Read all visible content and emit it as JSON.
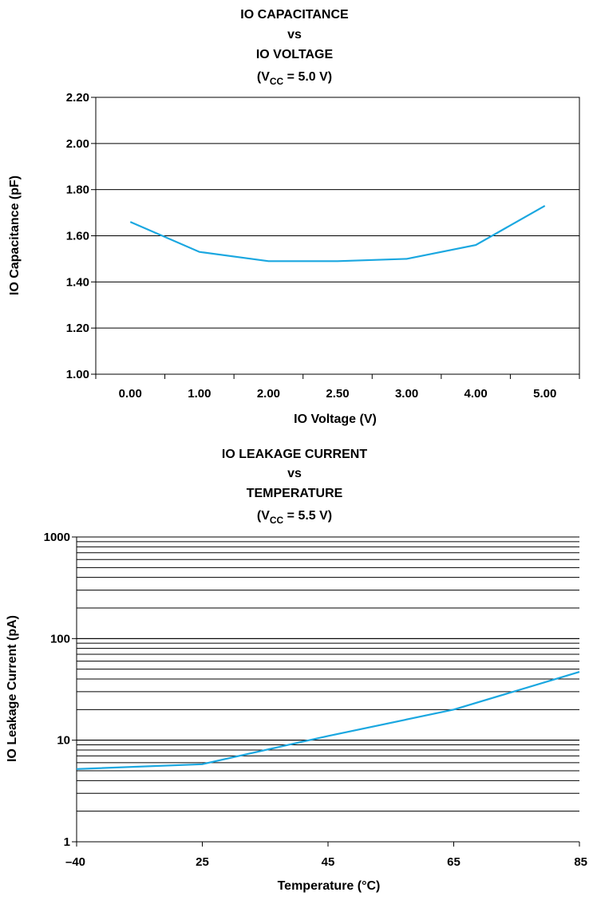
{
  "colors": {
    "line": "#1aa7e0",
    "grid": "#000000",
    "text": "#000000"
  },
  "chart_data": [
    {
      "type": "line",
      "title_lines": [
        "IO CAPACITANCE",
        "vs",
        "IO VOLTAGE"
      ],
      "condition": {
        "main": "(V",
        "sub": "CC",
        "rest": " = 5.0 V)"
      },
      "xlabel": "IO  Voltage (V)",
      "ylabel": "IO Capacitance (pF)",
      "categories": [
        "0.00",
        "1.00",
        "2.00",
        "2.50",
        "3.00",
        "4.00",
        "5.00"
      ],
      "values": [
        1.66,
        1.53,
        1.49,
        1.49,
        1.5,
        1.56,
        1.73
      ],
      "ylim": [
        1.0,
        2.2
      ],
      "yticks": [
        "1.00",
        "1.20",
        "1.40",
        "1.60",
        "1.80",
        "2.00",
        "2.20"
      ],
      "grid": true
    },
    {
      "type": "line",
      "title_lines": [
        "IO LEAKAGE CURRENT",
        "vs",
        "TEMPERATURE"
      ],
      "condition": {
        "main": "(V",
        "sub": "CC",
        "rest": " = 5.5 V)"
      },
      "xlabel": "Temperature (°C)",
      "ylabel": "IO Leakage Current (pA)",
      "yscale": "log",
      "ylim": [
        1,
        1000
      ],
      "x_tick_labels": [
        "–40",
        "25",
        "45",
        "65",
        "85"
      ],
      "x_tick_values": [
        -40,
        25,
        45,
        65,
        85
      ],
      "y_tick_labels": [
        "1",
        "10",
        "100",
        "1000"
      ],
      "x": [
        -40,
        25,
        45,
        65,
        85
      ],
      "y": [
        5.2,
        5.8,
        11.0,
        20.0,
        47.0
      ],
      "grid": true
    }
  ]
}
